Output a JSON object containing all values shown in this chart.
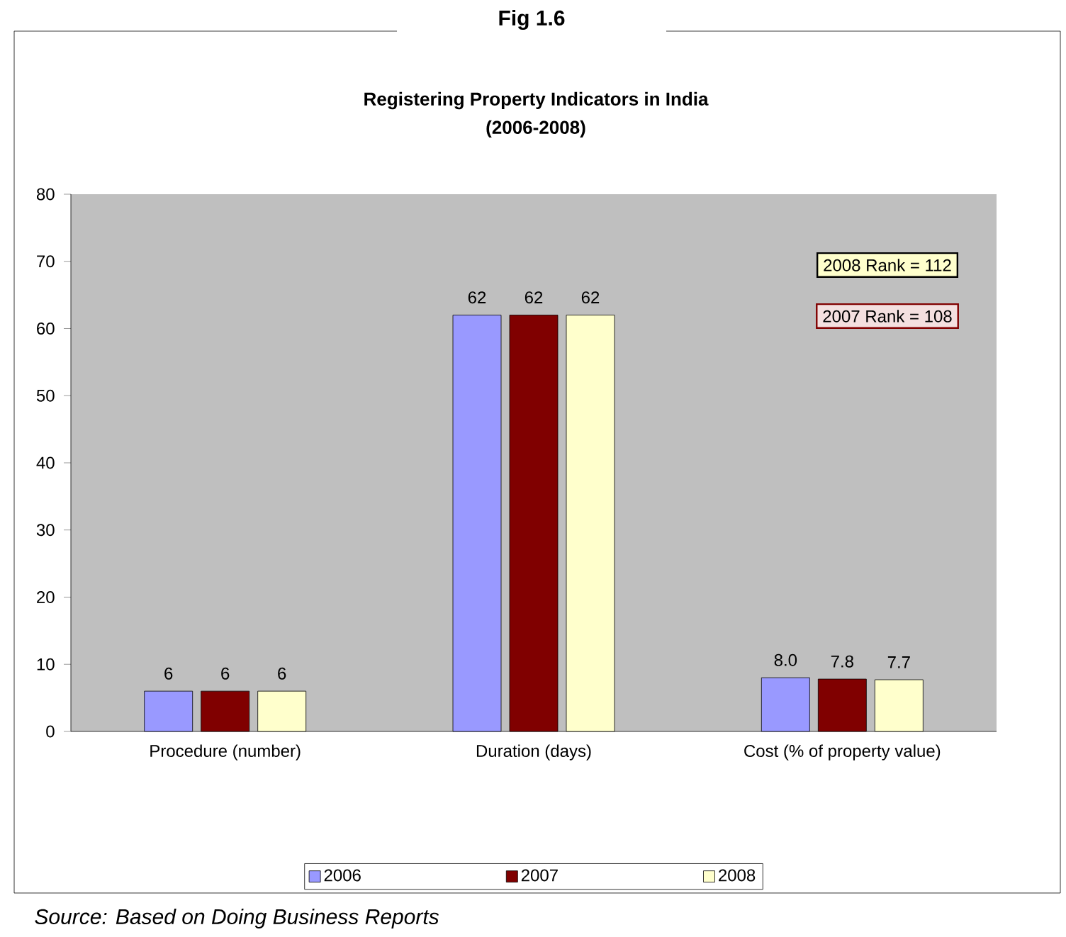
{
  "chart_data": {
    "type": "bar",
    "title": "Registering Property Indicators in India",
    "subtitle": "(2006-2008)",
    "categories": [
      "Procedure (number)",
      "Duration (days)",
      "Cost (% of property value)"
    ],
    "series": [
      {
        "name": "2006",
        "color": "#9999ff",
        "values": [
          6,
          62,
          8.0
        ],
        "value_labels": [
          "6",
          "62",
          "8.0"
        ]
      },
      {
        "name": "2007",
        "color": "#800000",
        "values": [
          6,
          62,
          7.8
        ],
        "value_labels": [
          "6",
          "62",
          "7.8"
        ]
      },
      {
        "name": "2008",
        "color": "#ffffcc",
        "values": [
          6,
          62,
          7.7
        ],
        "value_labels": [
          "6",
          "62",
          "7.7"
        ]
      }
    ],
    "ylim": [
      0,
      80
    ],
    "yticks": [
      0,
      10,
      20,
      30,
      40,
      50,
      60,
      70,
      80
    ],
    "grid": false,
    "legend": "bottom",
    "annotations": [
      "Fig 1.6",
      "2008 Rank = 112",
      "2007 Rank = 108",
      "Source: Based on Doing Business Reports"
    ]
  }
}
